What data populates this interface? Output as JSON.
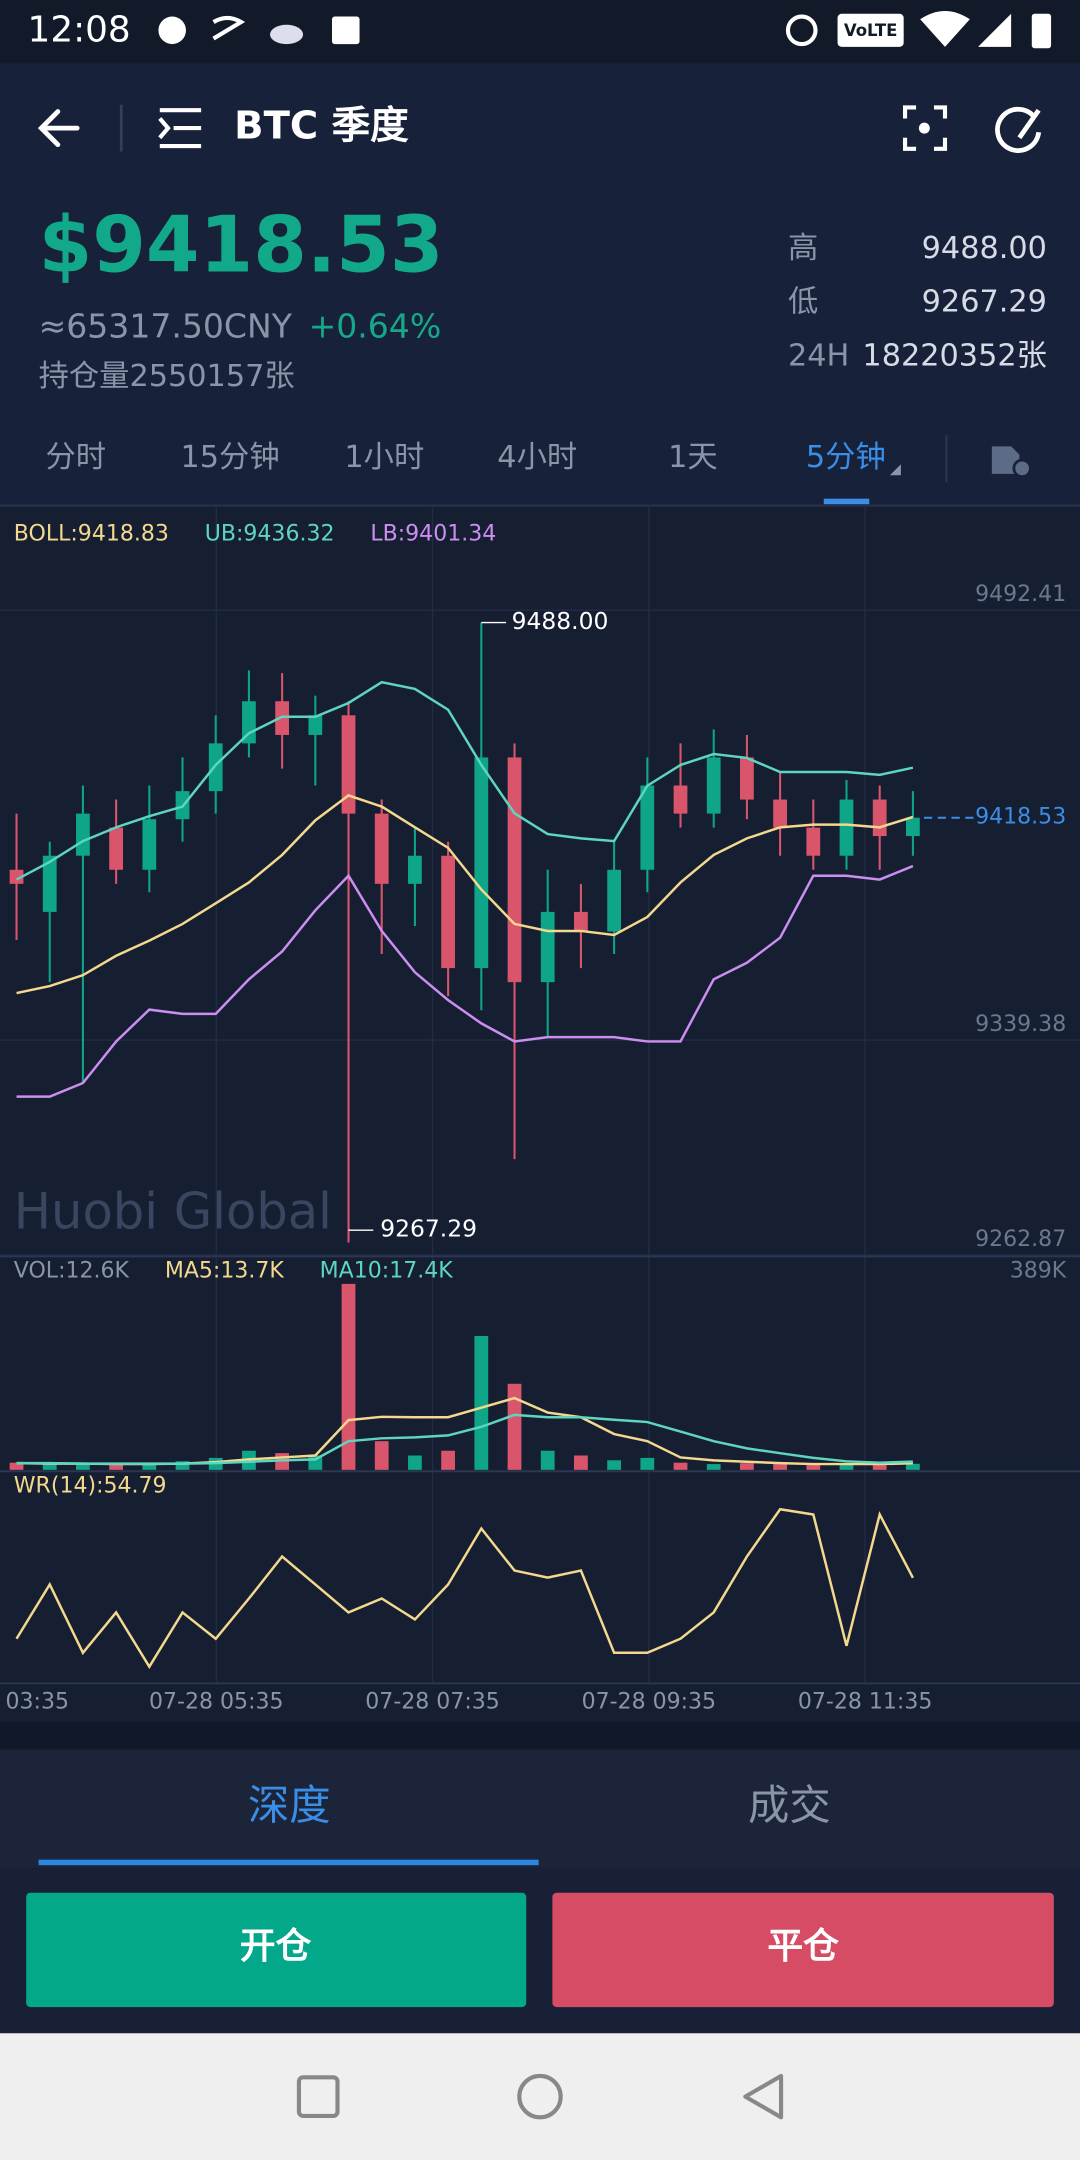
{
  "status_bar": {
    "time": "12:08",
    "network": "VoLTE"
  },
  "header": {
    "title": "BTC 季度"
  },
  "ticker": {
    "price": "$9418.53",
    "cny": "≈65317.50CNY",
    "change": "+0.64%",
    "open_interest": "持仓量2550157张",
    "stats": [
      {
        "label": "高",
        "value": "9488.00"
      },
      {
        "label": "低",
        "value": "9267.29"
      },
      {
        "label": "24H",
        "value": "18220352张"
      }
    ]
  },
  "tabs": {
    "items": [
      "分时",
      "15分钟",
      "1小时",
      "4小时",
      "1天",
      "5分钟"
    ],
    "active": 5
  },
  "time_axis": [
    "03:35",
    "07-28 05:35",
    "07-28 07:35",
    "07-28 09:35",
    "07-28 11:35"
  ],
  "watermark": "Huobi Global",
  "chart_data": [
    {
      "type": "candlestick",
      "categories": [
        null,
        null,
        null,
        null,
        null,
        null,
        null,
        null,
        null,
        null,
        null,
        null,
        null,
        null,
        null,
        null,
        null,
        null,
        null,
        null,
        null,
        null,
        null,
        null,
        null,
        null,
        null,
        null
      ],
      "open": [
        9400,
        9385,
        9405,
        9415,
        9400,
        9418,
        9428,
        9445,
        9460,
        9448,
        9455,
        9420,
        9395,
        9405,
        9365,
        9440,
        9360,
        9385,
        9378,
        9400,
        9430,
        9420,
        9440,
        9425,
        9415,
        9405,
        9425,
        9412
      ],
      "close": [
        9395,
        9405,
        9420,
        9400,
        9418,
        9428,
        9445,
        9460,
        9448,
        9455,
        9420,
        9395,
        9405,
        9365,
        9440,
        9360,
        9385,
        9378,
        9400,
        9430,
        9420,
        9440,
        9425,
        9415,
        9405,
        9425,
        9412,
        9418.53
      ],
      "high": [
        9420,
        9410,
        9430,
        9425,
        9430,
        9440,
        9455,
        9471,
        9470,
        9462,
        9460,
        9425,
        9415,
        9410,
        9488,
        9445,
        9400,
        9395,
        9410,
        9440,
        9445,
        9450,
        9448,
        9435,
        9425,
        9432,
        9430,
        9428
      ],
      "low": [
        9375,
        9360,
        9324,
        9395,
        9392,
        9410,
        9420,
        9440,
        9436,
        9430,
        9267.29,
        9370,
        9380,
        9355,
        9350,
        9297,
        9340,
        9365,
        9370,
        9392,
        9415,
        9415,
        9418,
        9405,
        9400,
        9400,
        9400,
        9405
      ],
      "up_color": "#0ea588",
      "down_color": "#d9556c",
      "series": [
        {
          "name": "BOLL:9418.83",
          "color": "#f3d88d",
          "values": [
            9356.1,
            9358.6,
            9362.5,
            9369.4,
            9374.8,
            9380.7,
            9388.1,
            9395.5,
            9405.3,
            9417.6,
            9426.5,
            9422.5,
            9415.1,
            9407.8,
            9393.0,
            9380.7,
            9378.2,
            9378.2,
            9376.8,
            9383.2,
            9395.5,
            9405.3,
            9411.2,
            9415.1,
            9416.1,
            9416.1,
            9415.1,
            9418.83
          ]
        },
        {
          "name": "UB:9436.32",
          "color": "#5ed6bf",
          "values": [
            9396.5,
            9402.8,
            9410.2,
            9415.1,
            9419.1,
            9422.5,
            9437.3,
            9448.6,
            9454.5,
            9454.5,
            9459.4,
            9466.8,
            9464.4,
            9457.0,
            9437.3,
            9420.1,
            9412.7,
            9411.2,
            9410.2,
            9429.9,
            9437.3,
            9441.2,
            9439.8,
            9434.8,
            9434.8,
            9434.8,
            9433.8,
            9436.32
          ]
        },
        {
          "name": "LB:9401.34",
          "color": "#cc8ef0",
          "values": [
            9319.2,
            9319.2,
            9324.1,
            9338.9,
            9350.2,
            9348.7,
            9348.7,
            9361.0,
            9370.9,
            9385.6,
            9397.9,
            9378.2,
            9363.5,
            9353.6,
            9345.3,
            9338.9,
            9340.4,
            9340.4,
            9340.4,
            9338.9,
            9338.9,
            9361.0,
            9366.9,
            9375.8,
            9397.9,
            9397.9,
            9396.5,
            9401.34
          ]
        }
      ],
      "ylim": [
        9262.87,
        9528.2
      ],
      "yticks": [
        9492.41,
        9339.38,
        9262.87
      ],
      "grid": true,
      "annotations": {
        "high": "9488.00",
        "low": "9267.29",
        "last": "9418.53"
      }
    },
    {
      "type": "bar",
      "categories": [
        null,
        null,
        null,
        null,
        null,
        null,
        null,
        null,
        null,
        null,
        null,
        null,
        null,
        null,
        null,
        null,
        null,
        null,
        null,
        null,
        null,
        null,
        null,
        null,
        null,
        null,
        null,
        null
      ],
      "values": [
        15,
        12,
        14,
        10,
        12,
        18,
        25,
        40,
        35,
        30,
        389,
        60,
        30,
        40,
        280,
        180,
        40,
        30,
        20,
        25,
        15,
        12,
        14,
        12,
        10,
        12,
        10,
        12.6
      ],
      "name": "VOL:12.6K",
      "series": [
        {
          "name": "MA5:13.7K",
          "color": "#f3d88d",
          "values": [
            14,
            13,
            13,
            12,
            12,
            13,
            16,
            22,
            26,
            30,
            104,
            111,
            110,
            110,
            130,
            150,
            120,
            110,
            75,
            60,
            26,
            20,
            17,
            14,
            12,
            12,
            12,
            13.7
          ]
        },
        {
          "name": "MA10:17.4K",
          "color": "#5ed6bf",
          "values": [
            14,
            14,
            13,
            13,
            13,
            13,
            14,
            17,
            20,
            22,
            60,
            66,
            68,
            72,
            90,
            115,
            110,
            110,
            105,
            100,
            80,
            60,
            45,
            35,
            25,
            18,
            15,
            17.4
          ]
        }
      ],
      "ylim": [
        0,
        389
      ],
      "yticks": [
        {
          "value": 389,
          "label": "389K"
        }
      ]
    },
    {
      "type": "line",
      "categories": [
        null,
        null,
        null,
        null,
        null,
        null,
        null,
        null,
        null,
        null,
        null,
        null,
        null,
        null,
        null,
        null,
        null,
        null,
        null,
        null,
        null,
        null,
        null,
        null,
        null,
        null,
        null,
        null
      ],
      "series": [
        {
          "name": "WR(14):54.79",
          "color": "#f3d88d",
          "values": [
            20,
            51,
            12,
            35,
            4,
            35,
            20,
            43,
            67,
            51,
            35,
            43,
            31,
            51,
            83,
            59,
            55,
            59,
            12,
            12,
            20,
            35,
            67,
            94,
            91,
            16,
            91,
            54.79
          ]
        }
      ],
      "ylim": [
        0,
        100
      ]
    }
  ],
  "bottom_tabs": {
    "items": [
      "深度",
      "成交"
    ],
    "active": 0
  },
  "buttons": {
    "open": "开仓",
    "close": "平仓"
  }
}
